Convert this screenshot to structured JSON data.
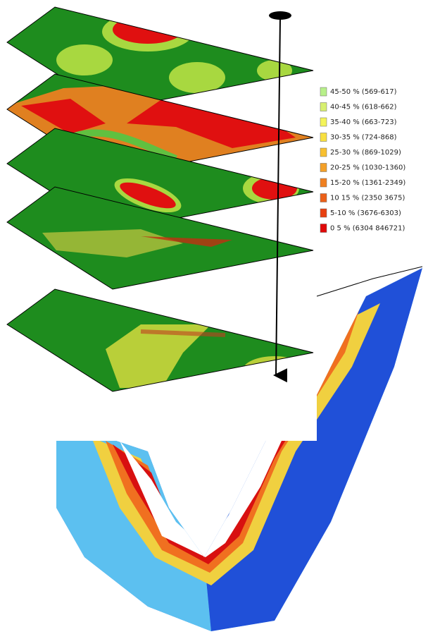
{
  "legend": {
    "items": [
      {
        "label": "45-50 % (569-617)",
        "color": "#b8f08a"
      },
      {
        "label": "40-45 % (618-662)",
        "color": "#d8f070"
      },
      {
        "label": "35-40 % (663-723)",
        "color": "#f4f45a"
      },
      {
        "label": "30-35 % (724-868)",
        "color": "#f8e040"
      },
      {
        "label": "25-30 % (869-1029)",
        "color": "#f8c030"
      },
      {
        "label": "20-25 % (1030-1360)",
        "color": "#f4a028"
      },
      {
        "label": "15-20 % (1361-2349)",
        "color": "#f08020"
      },
      {
        "label": "10 15 % (2350 3675)",
        "color": "#ec6018"
      },
      {
        "label": "5-10 % (3676-6303)",
        "color": "#e84010"
      },
      {
        "label": "0 5 % (6304 846721)",
        "color": "#e00808"
      }
    ]
  }
}
